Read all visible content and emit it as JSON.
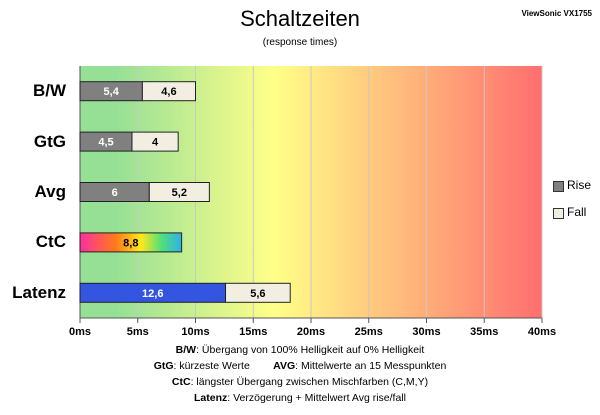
{
  "chart_data": {
    "type": "bar",
    "stacked": true,
    "orientation": "horizontal",
    "title": "Schaltzeiten",
    "subtitle": "(response times)",
    "model": "ViewSonic VX1755",
    "categories": [
      "B/W",
      "GtG",
      "Avg",
      "CtC",
      "Latenz"
    ],
    "xlim": [
      0,
      40
    ],
    "tick_labels": [
      "0ms",
      "5ms",
      "10ms",
      "15ms",
      "20ms",
      "25ms",
      "30ms",
      "35ms",
      "40ms"
    ],
    "series": [
      {
        "name": "Rise",
        "values": [
          5.4,
          4.5,
          6,
          8.8,
          12.6
        ],
        "labels": [
          "5,4",
          "4,5",
          "6",
          "8,8",
          "12,6"
        ]
      },
      {
        "name": "Fall",
        "values": [
          4.6,
          4,
          5.2,
          null,
          5.6
        ],
        "labels": [
          "4,6",
          "4",
          "5,2",
          "",
          "5,6"
        ]
      }
    ],
    "colors": {
      "rise": "#808080",
      "fall": "#f2efe2",
      "latenz_rise": "#3355e0",
      "background_gradient": [
        "#96e096",
        "#ffff88",
        "#ff6e6e"
      ]
    },
    "grid": true,
    "legend": "right"
  },
  "footnotes": [
    {
      "key": "B/W",
      "text": ":  Übergang von 100% Helligkeit auf 0% Helligkeit"
    },
    {
      "key": "GtG",
      "text": ": kürzeste  Werte",
      "key2": "AVG",
      "text2": ": Mittelwerte  an 15 Messpunkten"
    },
    {
      "key": "CtC",
      "text": ": längster Übergang  zwischen Mischfarben (C,M,Y)"
    },
    {
      "key": "Latenz",
      "text": ": Verzögerung  + Mittelwert Avg rise/fall"
    }
  ]
}
